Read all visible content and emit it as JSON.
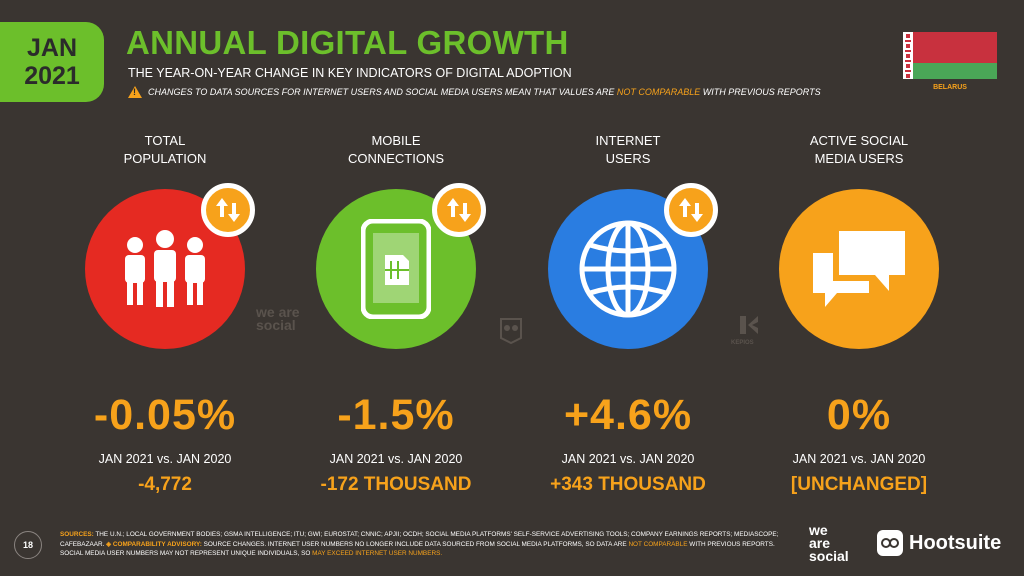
{
  "header": {
    "date_month": "JAN",
    "date_year": "2021",
    "title": "ANNUAL DIGITAL GROWTH",
    "subtitle": "THE YEAR-ON-YEAR CHANGE IN KEY INDICATORS OF DIGITAL ADOPTION",
    "warning_prefix": "CHANGES TO DATA SOURCES FOR INTERNET USERS AND SOCIAL MEDIA USERS MEAN THAT VALUES ARE ",
    "warning_highlight": "NOT COMPARABLE",
    "warning_suffix": " WITH PREVIOUS REPORTS",
    "country": "BELARUS"
  },
  "colors": {
    "accent_green": "#6cbf2b",
    "accent_orange": "#f7a21b",
    "population_red": "#e52a22",
    "mobile_green": "#6cbf2b",
    "internet_blue": "#2a7de1",
    "social_orange": "#f7a21b",
    "background": "#3a3531"
  },
  "columns": [
    {
      "label_line1": "TOTAL",
      "label_line2": "POPULATION",
      "icon": "people-icon",
      "value": "-0.05%",
      "comparison": "JAN 2021 vs. JAN 2020",
      "change": "-4,772"
    },
    {
      "label_line1": "MOBILE",
      "label_line2": "CONNECTIONS",
      "icon": "mobile-sim-icon",
      "value": "-1.5%",
      "comparison": "JAN 2021 vs. JAN 2020",
      "change": "-172 THOUSAND"
    },
    {
      "label_line1": "INTERNET",
      "label_line2": "USERS",
      "icon": "globe-icon",
      "value": "+4.6%",
      "comparison": "JAN 2021 vs. JAN 2020",
      "change": "+343 THOUSAND"
    },
    {
      "label_line1": "ACTIVE SOCIAL",
      "label_line2": "MEDIA USERS",
      "icon": "chat-bubbles-icon",
      "value": "0%",
      "comparison": "JAN 2021 vs. JAN 2020",
      "change": "[UNCHANGED]"
    }
  ],
  "watermarks": {
    "we_are_social": "we are social",
    "kepios": "KEPIOS"
  },
  "footer": {
    "page_number": "18",
    "sources_label": "SOURCES:",
    "sources_text": " THE U.N.; LOCAL GOVERNMENT BODIES; GSMA INTELLIGENCE; ITU; GWI; EUROSTAT; CNNIC; APJII; OCDH; SOCIAL MEDIA PLATFORMS' SELF-SERVICE ADVERTISING TOOLS; COMPANY EARNINGS REPORTS; MEDIASCOPE; CAFEBAZAAR. ",
    "advisory_label": "◈ COMPARABILITY ADVISORY:",
    "advisory_text1": " SOURCE CHANGES. INTERNET USER NUMBERS NO LONGER INCLUDE DATA SOURCED FROM SOCIAL MEDIA PLATFORMS, SO DATA ARE ",
    "advisory_highlight1": "NOT COMPARABLE",
    "advisory_text2": " WITH PREVIOUS REPORTS. SOCIAL MEDIA USER NUMBERS MAY NOT REPRESENT UNIQUE INDIVIDUALS, SO ",
    "advisory_highlight2": "MAY EXCEED INTERNET USER NUMBERS.",
    "brand_ws_1": "we",
    "brand_ws_2": "are",
    "brand_ws_3": "social",
    "brand_hs": "Hootsuite"
  }
}
